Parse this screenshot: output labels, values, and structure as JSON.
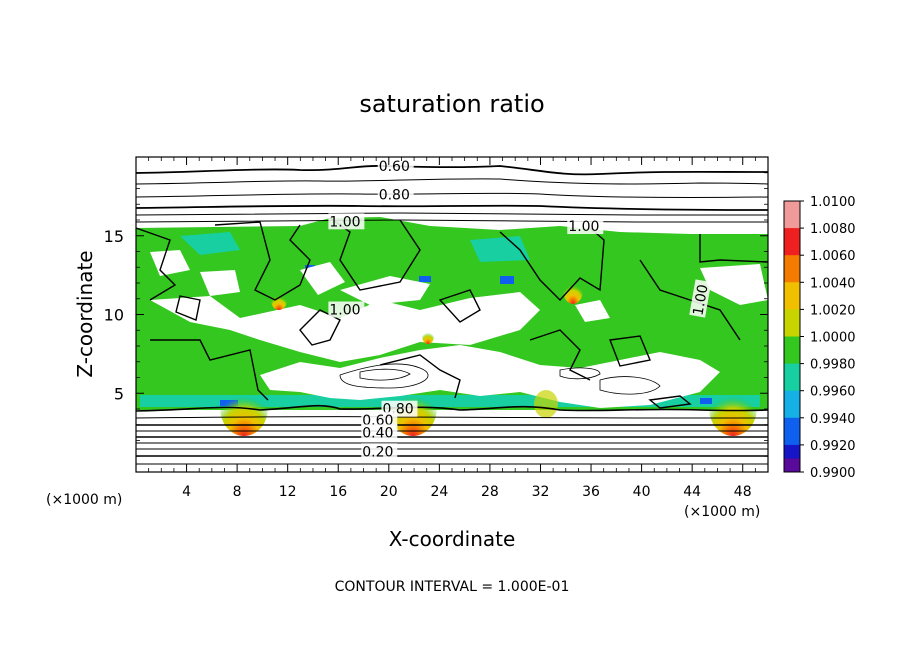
{
  "chart_data": {
    "type": "heatmap",
    "title": "saturation ratio",
    "xlabel": "X-coordinate",
    "ylabel": "Z-coordinate",
    "x_unit": "(×1000 m)",
    "y_unit": "(×1000 m)",
    "xlim": [
      0,
      50
    ],
    "ylim": [
      0,
      20
    ],
    "x_ticks": [
      4,
      8,
      12,
      16,
      20,
      24,
      28,
      32,
      36,
      40,
      44,
      48
    ],
    "y_ticks": [
      5,
      10,
      15
    ],
    "footer": "CONTOUR INTERVAL = 1.000E-01",
    "colorbar": {
      "levels": [
        "1.0100",
        "1.0080",
        "1.0060",
        "1.0040",
        "1.0020",
        "1.0000",
        "0.9980",
        "0.9960",
        "0.9940",
        "0.9920",
        "0.9900"
      ],
      "colors": [
        "#f19a9a",
        "#ee2020",
        "#f57a00",
        "#f0c000",
        "#c8d400",
        "#33c71f",
        "#17cfa0",
        "#14b0e6",
        "#1060f0",
        "#1616c8",
        "#5a0a9a"
      ]
    },
    "contour_labels": [
      {
        "text": "0.60",
        "x": 19.2,
        "z": 19.1
      },
      {
        "text": "0.80",
        "x": 19.2,
        "z": 17.3
      },
      {
        "text": "1.00",
        "x": 15.3,
        "z": 15.6
      },
      {
        "text": "1.00",
        "x": 34.2,
        "z": 15.3
      },
      {
        "text": "1.00",
        "x": 44.8,
        "z": 9.9
      },
      {
        "text": "1.00",
        "x": 15.3,
        "z": 10.0
      },
      {
        "text": "0.80",
        "x": 19.5,
        "z": 3.7
      },
      {
        "text": "0.60",
        "x": 17.9,
        "z": 3.0
      },
      {
        "text": "0.40",
        "x": 17.9,
        "z": 2.2
      },
      {
        "text": "0.20",
        "x": 17.9,
        "z": 1.0
      }
    ]
  }
}
